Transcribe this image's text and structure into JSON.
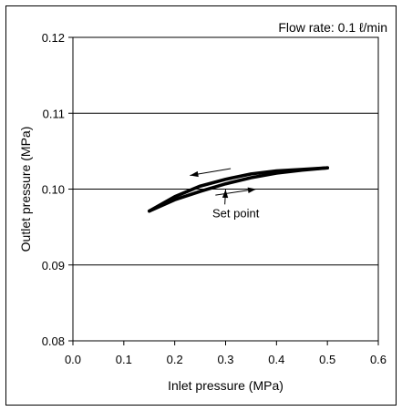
{
  "chart_data": {
    "type": "line",
    "annotation_top": "Flow rate: 0.1 ℓ/min",
    "xlabel": "Inlet pressure (MPa)",
    "ylabel": "Outlet pressure (MPa)",
    "xlim": [
      0.0,
      0.6
    ],
    "ylim": [
      0.08,
      0.12
    ],
    "x_ticks": [
      "0.0",
      "0.1",
      "0.2",
      "0.3",
      "0.4",
      "0.5",
      "0.6"
    ],
    "y_ticks": [
      "0.08",
      "0.09",
      "0.10",
      "0.11",
      "0.12"
    ],
    "y_gridlines": [
      0.09,
      0.1,
      0.11
    ],
    "series": [
      {
        "x": [
          0.15,
          0.2,
          0.25,
          0.3,
          0.35,
          0.4,
          0.45,
          0.5
        ],
        "y": [
          0.0971,
          0.0986,
          0.0997,
          0.1007,
          0.1015,
          0.1021,
          0.1025,
          0.1028
        ]
      },
      {
        "x": [
          0.5,
          0.45,
          0.4,
          0.35,
          0.3,
          0.25,
          0.2,
          0.15
        ],
        "y": [
          0.1028,
          0.1026,
          0.1024,
          0.102,
          0.1013,
          0.1004,
          0.099,
          0.0971
        ]
      }
    ],
    "annotations": [
      {
        "text": "Set point",
        "x": 0.32,
        "y": 0.0963,
        "arrow_to": [
          0.3,
          0.1003
        ]
      }
    ],
    "direction_arrows": [
      {
        "from": [
          0.31,
          0.1027
        ],
        "to": [
          0.23,
          0.1018
        ]
      },
      {
        "from": [
          0.28,
          0.0992
        ],
        "to": [
          0.36,
          0.1
        ]
      }
    ]
  }
}
